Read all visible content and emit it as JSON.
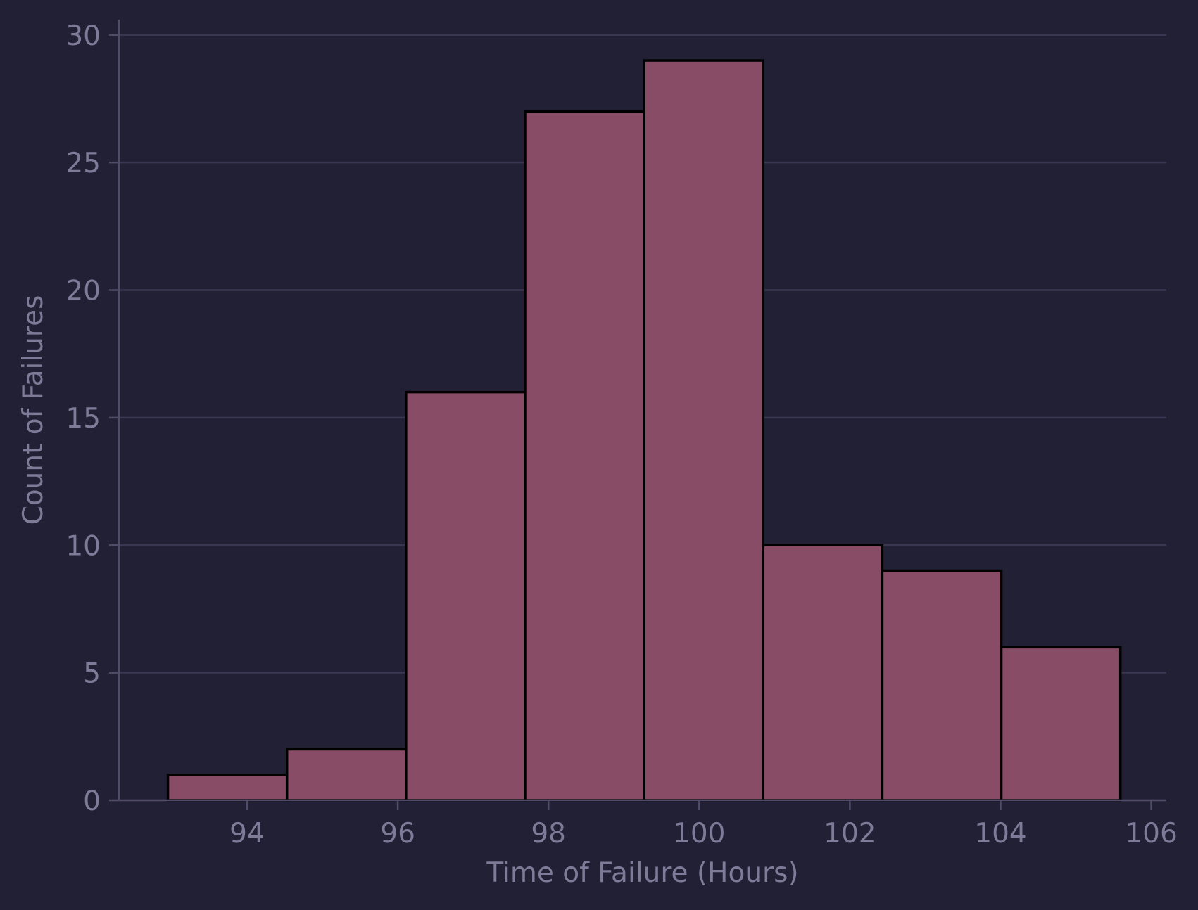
{
  "chart_data": {
    "type": "bar",
    "subtype": "histogram",
    "title": "",
    "xlabel": "Time of Failure (Hours)",
    "ylabel": "Count of Failures",
    "bins": [
      {
        "x0": 92.95,
        "x1": 94.53,
        "count": 1
      },
      {
        "x0": 94.53,
        "x1": 96.11,
        "count": 2
      },
      {
        "x0": 96.11,
        "x1": 97.69,
        "count": 16
      },
      {
        "x0": 97.69,
        "x1": 99.27,
        "count": 27
      },
      {
        "x0": 99.27,
        "x1": 100.85,
        "count": 29
      },
      {
        "x0": 100.85,
        "x1": 102.43,
        "count": 10
      },
      {
        "x0": 102.43,
        "x1": 104.01,
        "count": 9
      },
      {
        "x0": 104.01,
        "x1": 105.59,
        "count": 6
      }
    ],
    "xlim": [
      92.3,
      106.2
    ],
    "ylim": [
      0,
      30.6
    ],
    "xticks": [
      94,
      96,
      98,
      100,
      102,
      104,
      106
    ],
    "yticks": [
      0,
      5,
      10,
      15,
      20,
      25,
      30
    ],
    "grid": "horizontal",
    "legend": "none",
    "colors": {
      "background": "#222035",
      "bar_fill": "#894c66",
      "bar_edge": "#000000",
      "text": "#7f7a98",
      "grid": "#3a3652",
      "axis": "#514d68"
    }
  }
}
